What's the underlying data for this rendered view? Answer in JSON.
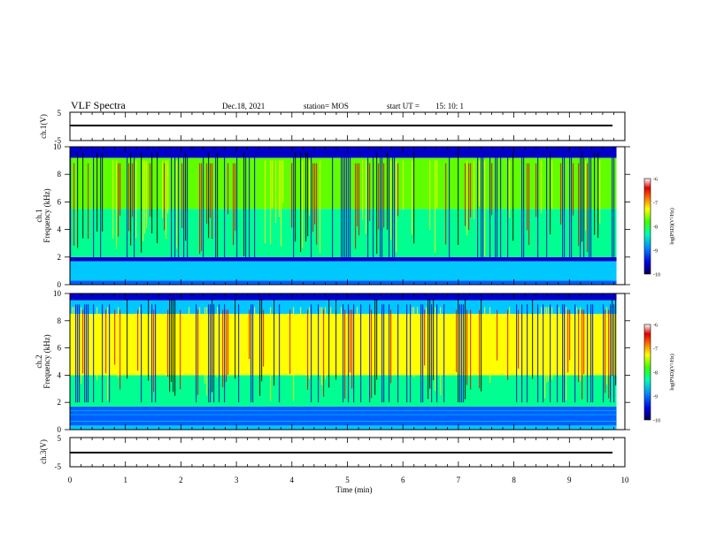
{
  "header": {
    "title": "VLF Spectra",
    "date": "Dec.18, 2021",
    "station": "station= MOS",
    "start_label": "start  UT =",
    "start_time": "15: 10: 1"
  },
  "colors": {
    "frame": "#000000",
    "spectrogram_colormap": [
      "#000000",
      "#0000c8",
      "#0060ff",
      "#00c8ff",
      "#00ff90",
      "#60ff00",
      "#ffff00",
      "#ff8000",
      "#e00000",
      "#ffffff"
    ]
  },
  "chart_data": [
    {
      "type": "line",
      "name": "waveform-ch1",
      "ylabel": "ch.1(V)",
      "yticks": [
        "5",
        "-5"
      ],
      "ylim": [
        -5,
        5
      ],
      "x": [
        0,
        9.85
      ],
      "y": [
        0,
        0
      ]
    },
    {
      "type": "heatmap",
      "name": "spectrogram-ch1",
      "ylabel": "ch.1\nFrequency (kHz)",
      "yticks": [
        "0",
        "2",
        "4",
        "6",
        "8",
        "10"
      ],
      "ylim": [
        0,
        10
      ],
      "xlim": [
        0,
        10
      ],
      "data_extent_x": 9.85,
      "colorbar": {
        "label": "log(PSD)(V²/Hz)",
        "ticks": [
          "-6",
          "-7",
          "-8",
          "-9",
          "-10"
        ],
        "range": [
          -10,
          -6
        ]
      },
      "bands": [
        {
          "from": 0.0,
          "to": 0.3,
          "level": 2
        },
        {
          "from": 0.3,
          "to": 1.7,
          "level": 3
        },
        {
          "from": 1.7,
          "to": 2.0,
          "level": 1
        },
        {
          "from": 2.0,
          "to": 5.5,
          "level": 4
        },
        {
          "from": 5.5,
          "to": 9.2,
          "level": 5
        },
        {
          "from": 9.2,
          "to": 10.0,
          "level": 1
        }
      ]
    },
    {
      "type": "heatmap",
      "name": "spectrogram-ch2",
      "ylabel": "ch.2\nFrequency (kHz)",
      "yticks": [
        "0",
        "2",
        "4",
        "6",
        "8",
        "10"
      ],
      "ylim": [
        0,
        10
      ],
      "xlim": [
        0,
        10
      ],
      "data_extent_x": 9.85,
      "colorbar": {
        "label": "log(PSD)(V²/Hz)",
        "ticks": [
          "-6",
          "-7",
          "-8",
          "-9",
          "-10"
        ],
        "range": [
          -10,
          -6
        ]
      },
      "bands": [
        {
          "from": 0.0,
          "to": 0.3,
          "level": 3
        },
        {
          "from": 0.3,
          "to": 1.7,
          "level": 2
        },
        {
          "from": 1.7,
          "to": 4.0,
          "level": 4
        },
        {
          "from": 4.0,
          "to": 8.5,
          "level": 6
        },
        {
          "from": 8.5,
          "to": 9.5,
          "level": 3
        },
        {
          "from": 9.5,
          "to": 10.0,
          "level": 1
        }
      ]
    },
    {
      "type": "line",
      "name": "waveform-ch3",
      "ylabel": "ch.3(V)",
      "yticks": [
        "5",
        "-5"
      ],
      "ylim": [
        -5,
        5
      ],
      "x": [
        0,
        9.85
      ],
      "y": [
        0,
        0
      ]
    }
  ],
  "xaxis": {
    "label": "Time (min)",
    "ticks": [
      "0",
      "1",
      "2",
      "3",
      "4",
      "5",
      "6",
      "7",
      "8",
      "9",
      "10"
    ],
    "xlim": [
      0,
      10
    ]
  }
}
